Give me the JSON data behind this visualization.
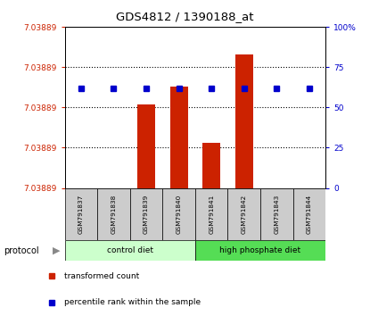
{
  "title": "GDS4812 / 1390188_at",
  "samples": [
    "GSM791837",
    "GSM791838",
    "GSM791839",
    "GSM791840",
    "GSM791841",
    "GSM791842",
    "GSM791843",
    "GSM791844"
  ],
  "bar_heights": [
    0.0,
    0.0,
    0.52,
    0.63,
    0.28,
    0.83,
    0.0,
    0.0
  ],
  "dot_percentile": [
    62,
    62,
    62,
    62,
    62,
    62,
    62,
    62
  ],
  "bar_color": "#cc2200",
  "dot_color": "#0000cc",
  "left_tick_color": "#cc2200",
  "right_tick_color": "#0000cc",
  "ytick_label": "7.03889",
  "yticks_right": [
    0,
    25,
    50,
    75,
    100
  ],
  "ytick_right_labels": [
    "0",
    "25",
    "50",
    "75",
    "100%"
  ],
  "control_diet_color": "#ccffcc",
  "hp_diet_color": "#55dd55",
  "xtick_bg_color": "#cccccc",
  "legend": [
    {
      "label": "transformed count",
      "color": "#cc2200"
    },
    {
      "label": "percentile rank within the sample",
      "color": "#0000cc"
    }
  ]
}
